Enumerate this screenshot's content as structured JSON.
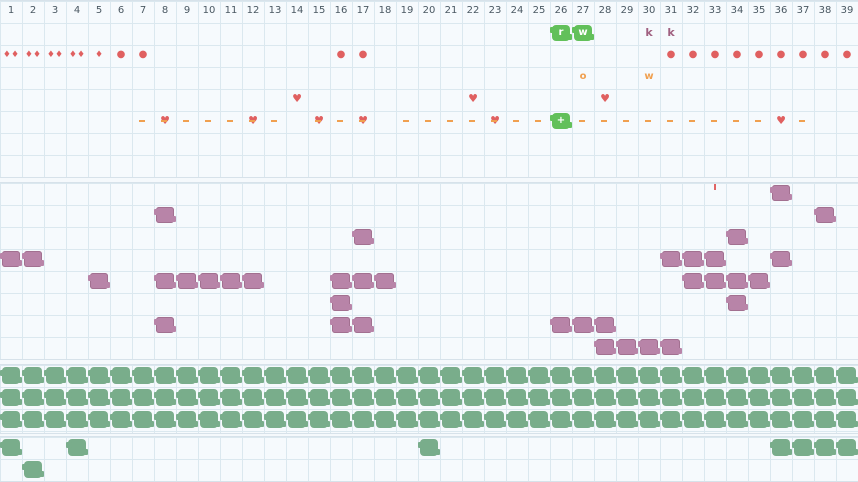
{
  "colors": {
    "grid_bg": "#f6fafd",
    "grid_line": "#dbe8ef",
    "purple": "#b884a8",
    "green": "#79ad8b",
    "bright_green": "#62c05a",
    "red": "#e06060",
    "orange": "#f0a050",
    "mauve": "#a06080"
  },
  "columns": [
    "1",
    "2",
    "3",
    "4",
    "5",
    "6",
    "7",
    "8",
    "9",
    "10",
    "11",
    "12",
    "13",
    "14",
    "15",
    "16",
    "17",
    "18",
    "19",
    "20",
    "21",
    "22",
    "23",
    "24",
    "25",
    "26",
    "27",
    "28",
    "29",
    "30",
    "31",
    "32",
    "33",
    "34",
    "35",
    "36",
    "37",
    "38",
    "39"
  ],
  "top_panel": {
    "tiles": [
      {
        "col": 26,
        "row": 1,
        "label": "r"
      },
      {
        "col": 27,
        "row": 1,
        "label": "w"
      },
      {
        "col": 26,
        "row": 5,
        "label": "+"
      }
    ],
    "glyphs": [
      {
        "col": 30,
        "row": 1,
        "text": "k",
        "kind": "letter-mauve"
      },
      {
        "col": 31,
        "row": 1,
        "text": "k",
        "kind": "letter-mauve"
      },
      {
        "col": 1,
        "row": 2,
        "text": "♦♦",
        "kind": "drop"
      },
      {
        "col": 2,
        "row": 2,
        "text": "♦♦",
        "kind": "drop"
      },
      {
        "col": 3,
        "row": 2,
        "text": "♦♦",
        "kind": "drop"
      },
      {
        "col": 4,
        "row": 2,
        "text": "♦♦",
        "kind": "drop"
      },
      {
        "col": 5,
        "row": 2,
        "text": "♦",
        "kind": "drop"
      },
      {
        "col": 6,
        "row": 2,
        "text": "●",
        "kind": "dot"
      },
      {
        "col": 7,
        "row": 2,
        "text": "●",
        "kind": "dot"
      },
      {
        "col": 16,
        "row": 2,
        "text": "●",
        "kind": "dot"
      },
      {
        "col": 17,
        "row": 2,
        "text": "●",
        "kind": "dot"
      },
      {
        "col": 31,
        "row": 2,
        "text": "●",
        "kind": "dot"
      },
      {
        "col": 32,
        "row": 2,
        "text": "●",
        "kind": "dot"
      },
      {
        "col": 33,
        "row": 2,
        "text": "●",
        "kind": "dot"
      },
      {
        "col": 34,
        "row": 2,
        "text": "●",
        "kind": "dot"
      },
      {
        "col": 35,
        "row": 2,
        "text": "●",
        "kind": "dot"
      },
      {
        "col": 36,
        "row": 2,
        "text": "●",
        "kind": "dot"
      },
      {
        "col": 37,
        "row": 2,
        "text": "●",
        "kind": "dot"
      },
      {
        "col": 38,
        "row": 2,
        "text": "●",
        "kind": "dot"
      },
      {
        "col": 39,
        "row": 2,
        "text": "●",
        "kind": "dot"
      },
      {
        "col": 27,
        "row": 3,
        "text": "o",
        "kind": "letter-orange"
      },
      {
        "col": 30,
        "row": 3,
        "text": "w",
        "kind": "letter-orange"
      },
      {
        "col": 14,
        "row": 4,
        "text": "♥",
        "kind": "heart"
      },
      {
        "col": 22,
        "row": 4,
        "text": "♥",
        "kind": "heart"
      },
      {
        "col": 28,
        "row": 4,
        "text": "♥",
        "kind": "heart"
      },
      {
        "col": 8,
        "row": 5,
        "text": "♥",
        "kind": "heart"
      },
      {
        "col": 12,
        "row": 5,
        "text": "♥",
        "kind": "heart"
      },
      {
        "col": 15,
        "row": 5,
        "text": "♥",
        "kind": "heart"
      },
      {
        "col": 17,
        "row": 5,
        "text": "♥",
        "kind": "heart"
      },
      {
        "col": 23,
        "row": 5,
        "text": "♥",
        "kind": "heart"
      },
      {
        "col": 26,
        "row": 5,
        "text": "♥",
        "kind": "heart"
      },
      {
        "col": 36,
        "row": 5,
        "text": "♥",
        "kind": "heart"
      },
      {
        "col": 33,
        "row": 8,
        "text": "ı",
        "kind": "tick-red"
      }
    ],
    "dashes": [
      7,
      8,
      9,
      10,
      11,
      12,
      13,
      15,
      16,
      17,
      19,
      20,
      21,
      22,
      23,
      24,
      25,
      27,
      28,
      29,
      30,
      31,
      32,
      33,
      34,
      35,
      37
    ]
  },
  "mid_panel": {
    "blobs": [
      [
        36,
        1
      ],
      [
        8,
        2
      ],
      [
        38,
        2
      ],
      [
        17,
        3
      ],
      [
        34,
        3
      ],
      [
        1,
        4
      ],
      [
        2,
        4
      ],
      [
        31,
        4
      ],
      [
        32,
        4
      ],
      [
        33,
        4
      ],
      [
        36,
        4
      ],
      [
        5,
        5
      ],
      [
        8,
        5
      ],
      [
        9,
        5
      ],
      [
        10,
        5
      ],
      [
        11,
        5
      ],
      [
        12,
        5
      ],
      [
        16,
        5
      ],
      [
        17,
        5
      ],
      [
        18,
        5
      ],
      [
        32,
        5
      ],
      [
        33,
        5
      ],
      [
        34,
        5
      ],
      [
        35,
        5
      ],
      [
        16,
        6
      ],
      [
        34,
        6
      ],
      [
        8,
        7
      ],
      [
        16,
        7
      ],
      [
        17,
        7
      ],
      [
        26,
        7
      ],
      [
        27,
        7
      ],
      [
        28,
        7
      ],
      [
        28,
        8
      ],
      [
        29,
        8
      ],
      [
        30,
        8
      ],
      [
        31,
        8
      ]
    ]
  },
  "green_panel": {
    "rows": 3,
    "cols": 39
  },
  "bottom_panel": {
    "blobs": [
      [
        1,
        1
      ],
      [
        4,
        1
      ],
      [
        20,
        1
      ],
      [
        36,
        1
      ],
      [
        37,
        1
      ],
      [
        38,
        1
      ],
      [
        39,
        1
      ],
      [
        2,
        2
      ]
    ]
  }
}
